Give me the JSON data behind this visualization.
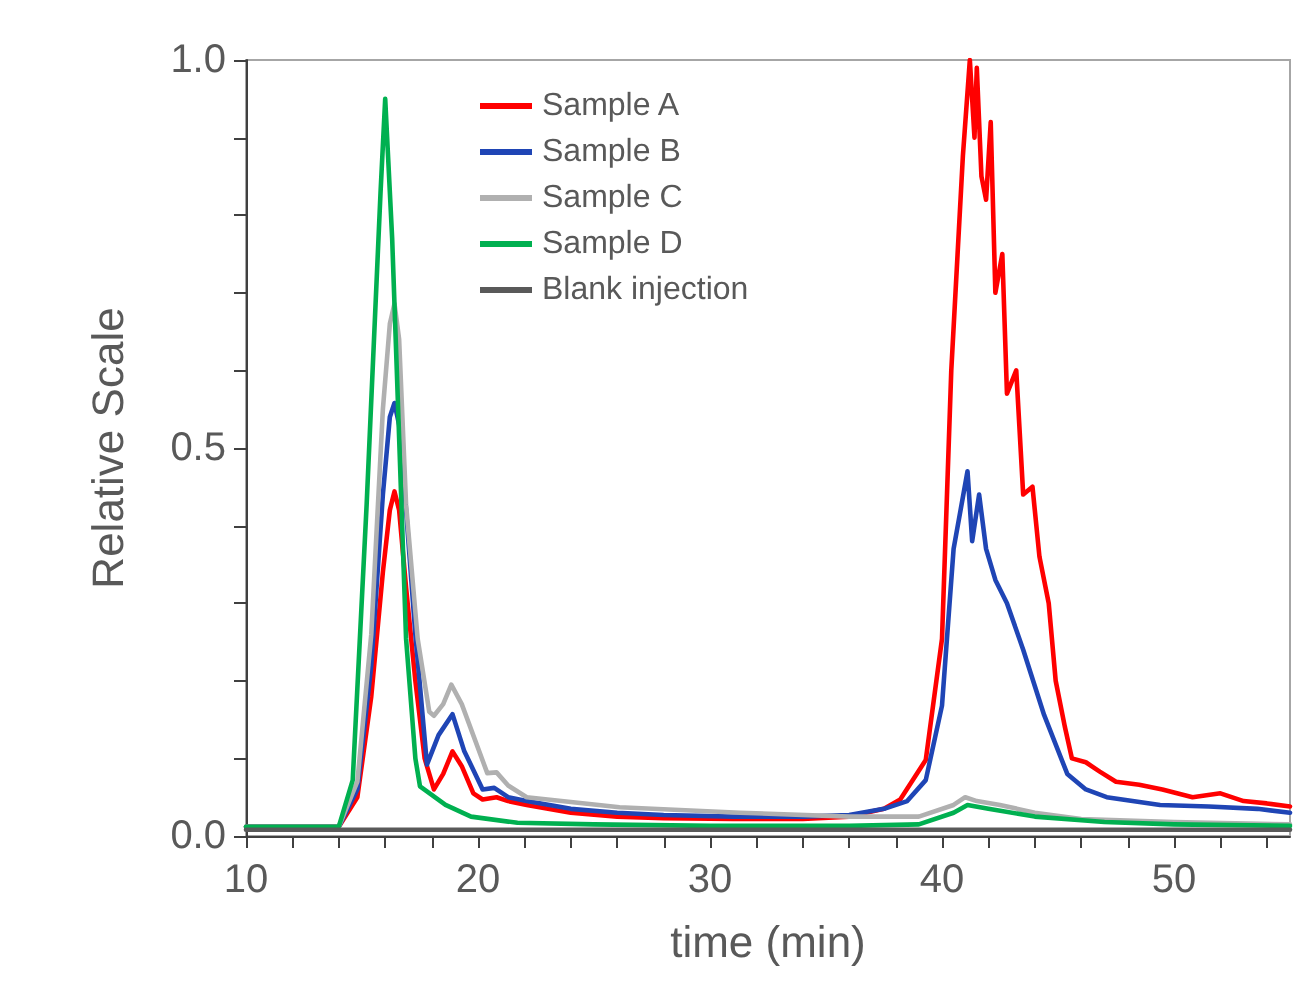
{
  "chart_data": {
    "type": "line",
    "xlabel": "time (min)",
    "ylabel": "Relative Scale",
    "xlim": [
      10,
      55
    ],
    "ylim": [
      0,
      1
    ],
    "xticks": [
      10,
      {
        "value": 12,
        "label": null
      },
      {
        "value": 14,
        "label": null
      },
      {
        "value": 16,
        "label": null
      },
      {
        "value": 18,
        "label": null
      },
      20,
      {
        "value": 22,
        "label": null
      },
      {
        "value": 24,
        "label": null
      },
      {
        "value": 26,
        "label": null
      },
      {
        "value": 28,
        "label": null
      },
      30,
      {
        "value": 32,
        "label": null
      },
      {
        "value": 34,
        "label": null
      },
      {
        "value": 36,
        "label": null
      },
      {
        "value": 38,
        "label": null
      },
      40,
      {
        "value": 42,
        "label": null
      },
      {
        "value": 44,
        "label": null
      },
      {
        "value": 46,
        "label": null
      },
      {
        "value": 48,
        "label": null
      },
      50,
      {
        "value": 52,
        "label": null
      },
      {
        "value": 54,
        "label": null
      }
    ],
    "yticks": [
      {
        "value": 0,
        "label": "0.0"
      },
      {
        "value": 0.1,
        "label": null
      },
      {
        "value": 0.2,
        "label": null
      },
      {
        "value": 0.3,
        "label": null
      },
      {
        "value": 0.4,
        "label": null
      },
      0.5,
      {
        "value": 0.6,
        "label": null
      },
      {
        "value": 0.7,
        "label": null
      },
      {
        "value": 0.8,
        "label": null
      },
      {
        "value": 0.9,
        "label": null
      },
      {
        "value": 1,
        "label": "1.0"
      }
    ],
    "grid": false,
    "legend": "top",
    "marker": "none",
    "line_style": "solid",
    "series": [
      {
        "name": "Sample A",
        "color": "#ff0000",
        "x": [
          10,
          14,
          14.8,
          15.4,
          15.9,
          16.2,
          16.4,
          16.6,
          16.9,
          17.3,
          17.7,
          18.1,
          18.5,
          18.9,
          19.3,
          19.8,
          20.2,
          20.8,
          21.3,
          22.1,
          24,
          26,
          28,
          31,
          34,
          36,
          37.5,
          38.2,
          39.3,
          40,
          40.4,
          40.9,
          41.2,
          41.4,
          41.5,
          41.7,
          41.9,
          42.1,
          42.3,
          42.6,
          42.8,
          43.2,
          43.5,
          43.9,
          44.2,
          44.6,
          44.9,
          45.3,
          45.6,
          46.2,
          46.8,
          47.5,
          48.5,
          49.5,
          50.8,
          52,
          53,
          54,
          55
        ],
        "values": [
          0.012,
          0.012,
          0.05,
          0.18,
          0.34,
          0.42,
          0.444,
          0.42,
          0.32,
          0.2,
          0.1,
          0.06,
          0.08,
          0.109,
          0.09,
          0.055,
          0.047,
          0.05,
          0.045,
          0.04,
          0.03,
          0.025,
          0.023,
          0.022,
          0.022,
          0.025,
          0.035,
          0.047,
          0.098,
          0.254,
          0.6,
          0.876,
          1.0,
          0.9,
          0.99,
          0.85,
          0.82,
          0.92,
          0.7,
          0.75,
          0.57,
          0.6,
          0.44,
          0.45,
          0.36,
          0.3,
          0.2,
          0.14,
          0.1,
          0.095,
          0.083,
          0.07,
          0.066,
          0.06,
          0.05,
          0.055,
          0.045,
          0.042,
          0.038
        ]
      },
      {
        "name": "Sample B",
        "color": "#1f45b5",
        "x": [
          10,
          14,
          14.8,
          15.4,
          15.9,
          16.2,
          16.4,
          16.6,
          16.9,
          17.3,
          17.8,
          18.3,
          18.9,
          19.4,
          20.2,
          20.7,
          21.3,
          22.1,
          24,
          26,
          28,
          31,
          34,
          36,
          37.5,
          38.5,
          39.3,
          40,
          40.5,
          40.8,
          41.1,
          41.3,
          41.6,
          41.9,
          42.3,
          42.8,
          43.5,
          44.4,
          45.4,
          46.2,
          47.1,
          49.4,
          51.5,
          53.6,
          55
        ],
        "values": [
          0.012,
          0.012,
          0.06,
          0.22,
          0.44,
          0.54,
          0.558,
          0.53,
          0.42,
          0.26,
          0.092,
          0.13,
          0.157,
          0.11,
          0.06,
          0.062,
          0.05,
          0.045,
          0.035,
          0.03,
          0.027,
          0.025,
          0.025,
          0.027,
          0.035,
          0.045,
          0.072,
          0.168,
          0.37,
          0.42,
          0.47,
          0.38,
          0.44,
          0.37,
          0.33,
          0.3,
          0.24,
          0.156,
          0.08,
          0.06,
          0.05,
          0.04,
          0.038,
          0.035,
          0.03
        ]
      },
      {
        "name": "Sample C",
        "color": "#b0b0b0",
        "x": [
          10,
          14,
          14.8,
          15.4,
          15.9,
          16.2,
          16.4,
          16.6,
          16.9,
          17.4,
          17.9,
          18.1,
          18.5,
          18.85,
          19.3,
          20.4,
          20.8,
          21.3,
          22.1,
          26.1,
          31.3,
          36,
          39,
          40.5,
          41,
          41.5,
          42.5,
          44,
          46,
          50,
          55
        ],
        "values": [
          0.012,
          0.012,
          0.07,
          0.26,
          0.55,
          0.66,
          0.686,
          0.64,
          0.427,
          0.254,
          0.16,
          0.155,
          0.17,
          0.195,
          0.17,
          0.081,
          0.082,
          0.065,
          0.05,
          0.037,
          0.03,
          0.025,
          0.025,
          0.04,
          0.05,
          0.045,
          0.04,
          0.03,
          0.022,
          0.018,
          0.015
        ]
      },
      {
        "name": "Sample D",
        "color": "#00b050",
        "x": [
          10,
          14,
          14.6,
          15.2,
          15.8,
          16,
          16.3,
          16.5,
          16.9,
          17.3,
          17.5,
          18.6,
          19.7,
          21.7,
          25,
          30,
          36,
          39,
          40.5,
          41.1,
          42,
          44,
          47,
          50,
          55
        ],
        "values": [
          0.012,
          0.012,
          0.072,
          0.427,
          0.83,
          0.95,
          0.77,
          0.6,
          0.254,
          0.1,
          0.064,
          0.04,
          0.025,
          0.017,
          0.015,
          0.013,
          0.013,
          0.015,
          0.03,
          0.04,
          0.035,
          0.025,
          0.018,
          0.015,
          0.013
        ]
      },
      {
        "name": "Blank injection",
        "color": "#595959",
        "x": [
          10,
          14,
          20,
          30,
          40,
          50,
          55
        ],
        "values": [
          0.008,
          0.008,
          0.008,
          0.008,
          0.008,
          0.008,
          0.008
        ]
      }
    ]
  }
}
